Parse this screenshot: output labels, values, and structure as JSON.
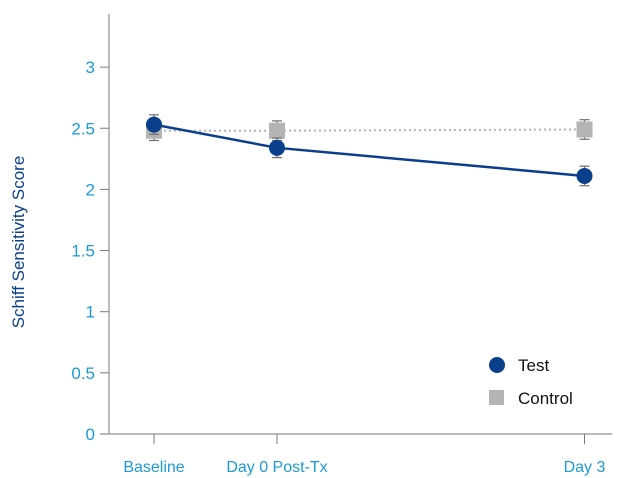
{
  "chart_data": {
    "type": "line",
    "title": "",
    "xlabel": "",
    "ylabel": "Schiff Sensitivity Score",
    "categories": [
      "Baseline",
      "Day 0 Post-Tx",
      "Day 3"
    ],
    "x": [
      0,
      1,
      3.5
    ],
    "ylim": [
      0,
      3.4
    ],
    "yticks": [
      0,
      0.5,
      1,
      1.5,
      2,
      2.5,
      3
    ],
    "ytick_labels": [
      "0",
      "0.5",
      "1",
      "1.5",
      "2",
      "2.5",
      "3"
    ],
    "grid": false,
    "legend_position": "bottom-right",
    "series": [
      {
        "name": "Test",
        "values": [
          2.53,
          2.34,
          2.11
        ],
        "error": [
          0.08,
          0.08,
          0.08
        ],
        "color": "#0a3f8c",
        "marker": "circle",
        "line_style": "solid"
      },
      {
        "name": "Control",
        "values": [
          2.48,
          2.48,
          2.49
        ],
        "error": [
          0.08,
          0.08,
          0.08
        ],
        "color": "#b4b4b4",
        "marker": "square",
        "line_style": "dotted"
      }
    ]
  }
}
